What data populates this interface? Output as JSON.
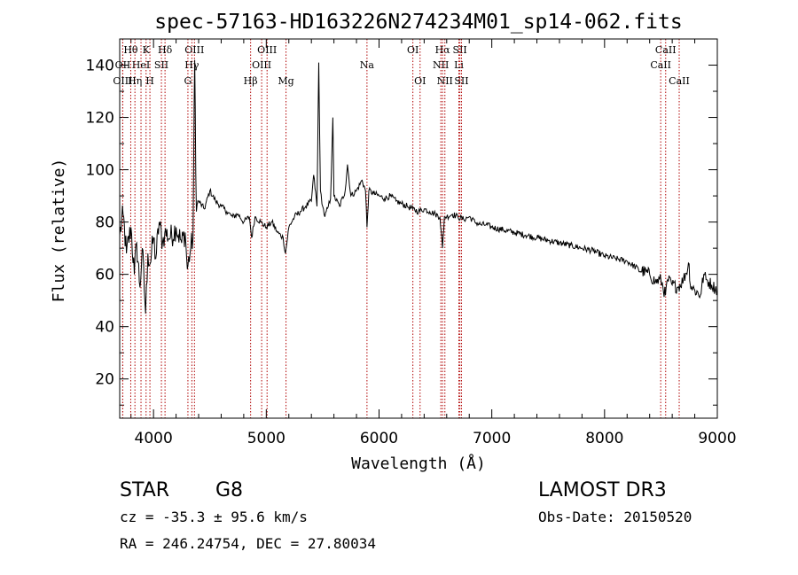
{
  "chart_data": {
    "type": "line",
    "title": "spec-57163-HD163226N274234M01_sp14-062.fits",
    "xlabel": "Wavelength (Å)",
    "ylabel": "Flux (relative)",
    "xlim": [
      3700,
      9000
    ],
    "ylim": [
      5,
      150
    ],
    "xticks": [
      4000,
      5000,
      6000,
      7000,
      8000,
      9000
    ],
    "yticks": [
      20,
      40,
      60,
      80,
      100,
      120,
      140
    ],
    "grid": false,
    "series": [
      {
        "name": "spectrum",
        "anchors": [
          [
            3700,
            75
          ],
          [
            3730,
            83
          ],
          [
            3760,
            68
          ],
          [
            3800,
            78
          ],
          [
            3830,
            60
          ],
          [
            3850,
            72
          ],
          [
            3880,
            55
          ],
          [
            3900,
            70
          ],
          [
            3930,
            45
          ],
          [
            3950,
            68
          ],
          [
            3970,
            64
          ],
          [
            4000,
            74
          ],
          [
            4020,
            66
          ],
          [
            4050,
            80
          ],
          [
            4080,
            72
          ],
          [
            4100,
            76
          ],
          [
            4150,
            74
          ],
          [
            4200,
            78
          ],
          [
            4250,
            72
          ],
          [
            4280,
            76
          ],
          [
            4300,
            62
          ],
          [
            4330,
            70
          ],
          [
            4350,
            74
          ],
          [
            4365,
            142
          ],
          [
            4380,
            84
          ],
          [
            4400,
            88
          ],
          [
            4450,
            85
          ],
          [
            4500,
            92
          ],
          [
            4550,
            88
          ],
          [
            4600,
            86
          ],
          [
            4650,
            84
          ],
          [
            4700,
            82
          ],
          [
            4750,
            83
          ],
          [
            4800,
            80
          ],
          [
            4850,
            82
          ],
          [
            4870,
            74
          ],
          [
            4900,
            82
          ],
          [
            4950,
            80
          ],
          [
            5000,
            78
          ],
          [
            5050,
            80
          ],
          [
            5100,
            76
          ],
          [
            5150,
            74
          ],
          [
            5170,
            68
          ],
          [
            5200,
            78
          ],
          [
            5250,
            82
          ],
          [
            5300,
            84
          ],
          [
            5350,
            86
          ],
          [
            5400,
            88
          ],
          [
            5420,
            98
          ],
          [
            5450,
            86
          ],
          [
            5465,
            141
          ],
          [
            5480,
            92
          ],
          [
            5500,
            86
          ],
          [
            5520,
            82
          ],
          [
            5550,
            86
          ],
          [
            5570,
            89
          ],
          [
            5590,
            120
          ],
          [
            5600,
            90
          ],
          [
            5650,
            86
          ],
          [
            5700,
            92
          ],
          [
            5720,
            102
          ],
          [
            5750,
            90
          ],
          [
            5800,
            92
          ],
          [
            5850,
            96
          ],
          [
            5880,
            92
          ],
          [
            5893,
            78
          ],
          [
            5910,
            92
          ],
          [
            5950,
            91
          ],
          [
            6000,
            90
          ],
          [
            6050,
            89
          ],
          [
            6100,
            90
          ],
          [
            6150,
            88
          ],
          [
            6200,
            87
          ],
          [
            6250,
            86
          ],
          [
            6300,
            85
          ],
          [
            6350,
            84
          ],
          [
            6400,
            85
          ],
          [
            6450,
            84
          ],
          [
            6500,
            83
          ],
          [
            6540,
            82
          ],
          [
            6563,
            70
          ],
          [
            6580,
            82
          ],
          [
            6600,
            82
          ],
          [
            6650,
            83
          ],
          [
            6700,
            82
          ],
          [
            6750,
            81
          ],
          [
            6800,
            82
          ],
          [
            6850,
            80
          ],
          [
            6900,
            79
          ],
          [
            6950,
            79
          ],
          [
            7000,
            78
          ],
          [
            7100,
            77
          ],
          [
            7200,
            76
          ],
          [
            7300,
            75
          ],
          [
            7400,
            74
          ],
          [
            7500,
            73
          ],
          [
            7600,
            72
          ],
          [
            7700,
            71
          ],
          [
            7800,
            70
          ],
          [
            7900,
            69
          ],
          [
            8000,
            67
          ],
          [
            8100,
            66
          ],
          [
            8200,
            65
          ],
          [
            8300,
            62
          ],
          [
            8400,
            60
          ],
          [
            8450,
            57
          ],
          [
            8500,
            58
          ],
          [
            8540,
            52
          ],
          [
            8560,
            58
          ],
          [
            8600,
            56
          ],
          [
            8650,
            55
          ],
          [
            8700,
            58
          ],
          [
            8750,
            64
          ],
          [
            8760,
            56
          ],
          [
            8800,
            54
          ],
          [
            8850,
            52
          ],
          [
            8880,
            60
          ],
          [
            8900,
            58
          ],
          [
            8950,
            56
          ],
          [
            9000,
            54
          ]
        ]
      }
    ],
    "spectral_lines": [
      {
        "label": "Hθ",
        "x": 3798,
        "row": 1
      },
      {
        "label": "OII",
        "x": 3727,
        "row": 2
      },
      {
        "label": "OIII",
        "x": 3727,
        "row": 3
      },
      {
        "label": "K",
        "x": 3934,
        "row": 1
      },
      {
        "label": "HeI",
        "x": 3889,
        "row": 2
      },
      {
        "label": "Hη",
        "x": 3835,
        "row": 3
      },
      {
        "label": "Hδ",
        "x": 4102,
        "row": 1
      },
      {
        "label": "SII",
        "x": 4070,
        "row": 2
      },
      {
        "label": "H",
        "x": 3968,
        "row": 3
      },
      {
        "label": "OIII",
        "x": 4363,
        "row": 1
      },
      {
        "label": "Hγ",
        "x": 4340,
        "row": 2
      },
      {
        "label": "G",
        "x": 4305,
        "row": 3
      },
      {
        "label": "OIII",
        "x": 5007,
        "row": 1
      },
      {
        "label": "OIII",
        "x": 4959,
        "row": 2
      },
      {
        "label": "Hβ",
        "x": 4861,
        "row": 3
      },
      {
        "label": "Mg",
        "x": 5175,
        "row": 3
      },
      {
        "label": "Na",
        "x": 5893,
        "row": 2
      },
      {
        "label": "OI",
        "x": 6300,
        "row": 1
      },
      {
        "label": "OI",
        "x": 6364,
        "row": 3
      },
      {
        "label": "Hα",
        "x": 6563,
        "row": 1
      },
      {
        "label": "SII",
        "x": 6717,
        "row": 1
      },
      {
        "label": "NII",
        "x": 6548,
        "row": 2
      },
      {
        "label": "Li",
        "x": 6708,
        "row": 2
      },
      {
        "label": "NII",
        "x": 6584,
        "row": 3
      },
      {
        "label": "SII",
        "x": 6731,
        "row": 3
      },
      {
        "label": "CaII",
        "x": 8542,
        "row": 1
      },
      {
        "label": "CaII",
        "x": 8498,
        "row": 2
      },
      {
        "label": "CaII",
        "x": 8662,
        "row": 3
      }
    ]
  },
  "info": {
    "object_class": "STAR",
    "subclass": "G8",
    "survey": "LAMOST DR3",
    "cz": "cz = -35.3 ± 95.6 km/s",
    "obs_date": "Obs-Date: 20150520",
    "coords": "RA = 246.24754, DEC =  27.80034"
  }
}
